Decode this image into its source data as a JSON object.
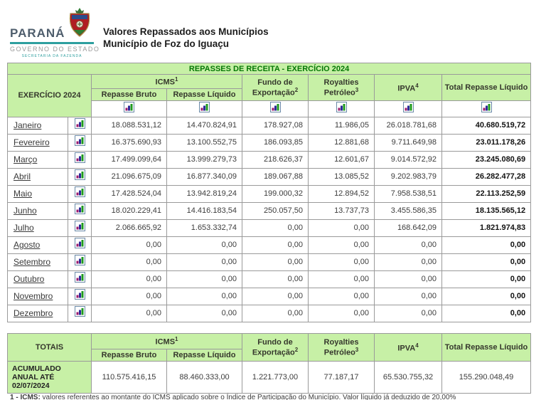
{
  "brand": {
    "name": "PARANÁ",
    "government": "GOVERNO DO ESTADO",
    "secretary": "SECRETARIA DA FAZENDA"
  },
  "page": {
    "title_line1": "Valores Repassados aos Municípios",
    "title_line2": "Município de Foz do Iguaçu"
  },
  "colors": {
    "table_green": "#c7f0a6",
    "caption_green_text": "#067806",
    "brand_teal": "#2e9f9f"
  },
  "icons": {
    "chart": "bar-chart-icon",
    "crest": "parana-coat-of-arms"
  },
  "table": {
    "caption": "REPASSES DE RECEITA - EXERCÍCIO 2024",
    "col_exercicio": "EXERCÍCIO 2024",
    "col_icms": "ICMS",
    "col_icms_sup": "1",
    "col_repasse_bruto": "Repasse Bruto",
    "col_repasse_liquido": "Repasse Líquido",
    "col_fundo": "Fundo de Exportação",
    "col_fundo_sup": "2",
    "col_royalties": "Royalties Petróleo",
    "col_royalties_sup": "3",
    "col_ipva": "IPVA",
    "col_ipva_sup": "4",
    "col_total": "Total Repasse Líquido"
  },
  "months": [
    {
      "label": "Janeiro",
      "values": [
        "18.088.531,12",
        "14.470.824,91",
        "178.927,08",
        "11.986,05",
        "26.018.781,68",
        "40.680.519,72"
      ]
    },
    {
      "label": "Fevereiro",
      "values": [
        "16.375.690,93",
        "13.100.552,75",
        "186.093,85",
        "12.881,68",
        "9.711.649,98",
        "23.011.178,26"
      ]
    },
    {
      "label": "Março",
      "values": [
        "17.499.099,64",
        "13.999.279,73",
        "218.626,37",
        "12.601,67",
        "9.014.572,92",
        "23.245.080,69"
      ]
    },
    {
      "label": "Abril",
      "values": [
        "21.096.675,09",
        "16.877.340,09",
        "189.067,88",
        "13.085,52",
        "9.202.983,79",
        "26.282.477,28"
      ]
    },
    {
      "label": "Maio",
      "values": [
        "17.428.524,04",
        "13.942.819,24",
        "199.000,32",
        "12.894,52",
        "7.958.538,51",
        "22.113.252,59"
      ]
    },
    {
      "label": "Junho",
      "values": [
        "18.020.229,41",
        "14.416.183,54",
        "250.057,50",
        "13.737,73",
        "3.455.586,35",
        "18.135.565,12"
      ]
    },
    {
      "label": "Julho",
      "values": [
        "2.066.665,92",
        "1.653.332,74",
        "0,00",
        "0,00",
        "168.642,09",
        "1.821.974,83"
      ]
    },
    {
      "label": "Agosto",
      "values": [
        "0,00",
        "0,00",
        "0,00",
        "0,00",
        "0,00",
        "0,00"
      ]
    },
    {
      "label": "Setembro",
      "values": [
        "0,00",
        "0,00",
        "0,00",
        "0,00",
        "0,00",
        "0,00"
      ]
    },
    {
      "label": "Outubro",
      "values": [
        "0,00",
        "0,00",
        "0,00",
        "0,00",
        "0,00",
        "0,00"
      ]
    },
    {
      "label": "Novembro",
      "values": [
        "0,00",
        "0,00",
        "0,00",
        "0,00",
        "0,00",
        "0,00"
      ]
    },
    {
      "label": "Dezembro",
      "values": [
        "0,00",
        "0,00",
        "0,00",
        "0,00",
        "0,00",
        "0,00"
      ]
    }
  ],
  "totals": {
    "header": "TOTAIS",
    "row_label": "ACUMULADO ANUAL ATÉ 02/07/2024",
    "values": [
      "110.575.416,15",
      "88.460.333,00",
      "1.221.773,00",
      "77.187,17",
      "65.530.755,32",
      "155.290.048,49"
    ]
  },
  "footnote": {
    "marker": "1 - ICMS:",
    "text": " valores referentes ao montante do ICMS aplicado sobre o Índice de Participação do Município. Valor líquido já deduzido de 20,00%"
  }
}
